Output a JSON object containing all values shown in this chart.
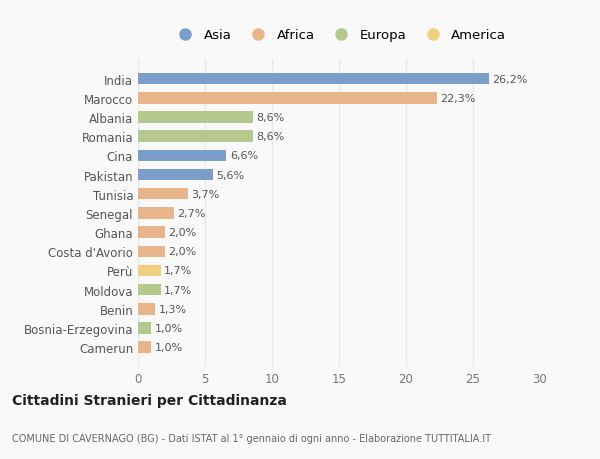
{
  "countries": [
    "India",
    "Marocco",
    "Albania",
    "Romania",
    "Cina",
    "Pakistan",
    "Tunisia",
    "Senegal",
    "Ghana",
    "Costa d'Avorio",
    "Perù",
    "Moldova",
    "Benin",
    "Bosnia-Erzegovina",
    "Camerun"
  ],
  "values": [
    26.2,
    22.3,
    8.6,
    8.6,
    6.6,
    5.6,
    3.7,
    2.7,
    2.0,
    2.0,
    1.7,
    1.7,
    1.3,
    1.0,
    1.0
  ],
  "labels": [
    "26,2%",
    "22,3%",
    "8,6%",
    "8,6%",
    "6,6%",
    "5,6%",
    "3,7%",
    "2,7%",
    "2,0%",
    "2,0%",
    "1,7%",
    "1,7%",
    "1,3%",
    "1,0%",
    "1,0%"
  ],
  "continents": [
    "Asia",
    "Africa",
    "Europa",
    "Europa",
    "Asia",
    "Asia",
    "Africa",
    "Africa",
    "Africa",
    "Africa",
    "America",
    "Europa",
    "Africa",
    "Europa",
    "Africa"
  ],
  "colors": {
    "Asia": "#7b9dc9",
    "Africa": "#e8b48a",
    "Europa": "#b5c98e",
    "America": "#f0d080"
  },
  "legend_order": [
    "Asia",
    "Africa",
    "Europa",
    "America"
  ],
  "xlim": [
    0,
    30
  ],
  "xticks": [
    0,
    5,
    10,
    15,
    20,
    25,
    30
  ],
  "title": "Cittadini Stranieri per Cittadinanza",
  "subtitle": "COMUNE DI CAVERNAGO (BG) - Dati ISTAT al 1° gennaio di ogni anno - Elaborazione TUTTITALIA.IT",
  "bg_color": "#f9f9f9",
  "grid_color": "#e8e8e8",
  "bar_height": 0.6
}
